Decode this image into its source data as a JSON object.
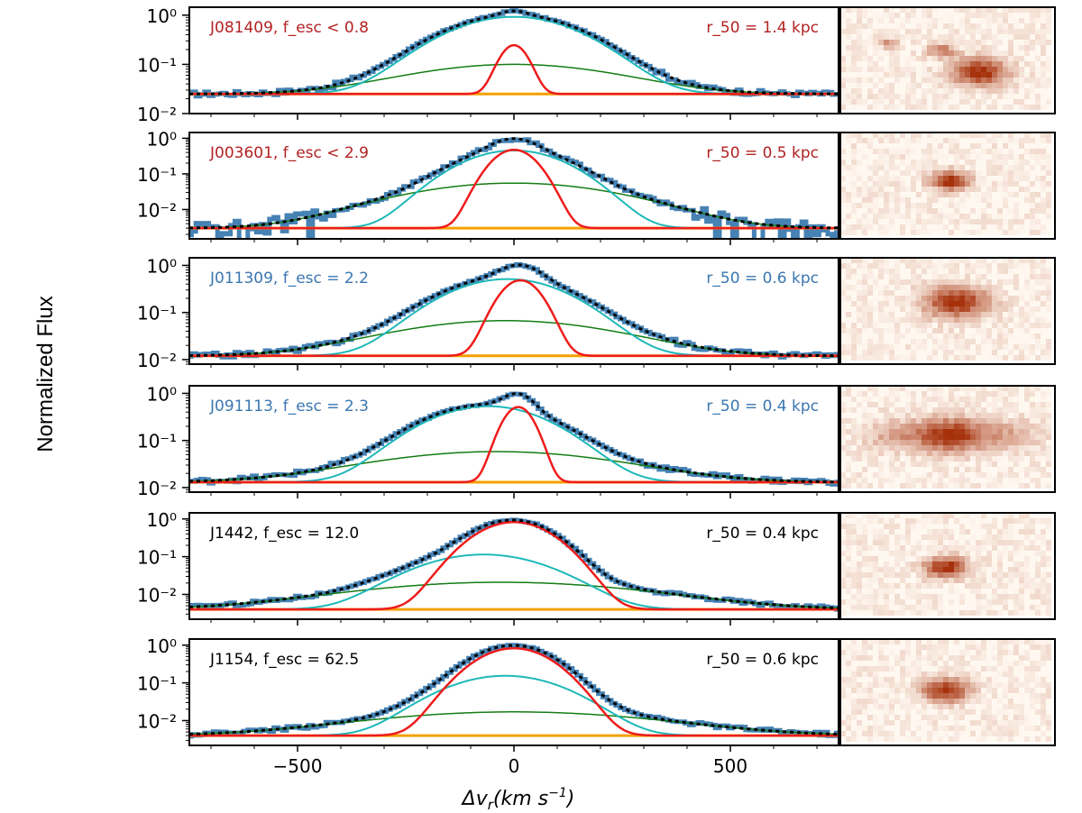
{
  "chart_data": {
    "type": "line",
    "ylabel": "Normalized Flux",
    "xlabel": "Δv_r(km s^-1)",
    "xlim": [
      -750,
      750
    ],
    "xticks": [
      -500,
      0,
      500
    ],
    "xtick_labels": [
      "−500",
      "0",
      "500"
    ],
    "ytick_labels": [
      "10⁰",
      "10⁻¹",
      "10⁻²"
    ],
    "yscale": "log",
    "legend_colors": {
      "observed": "#4682b4",
      "model": "#000000",
      "narrow": "#ee1c1c",
      "broad": "#1fb8b8",
      "very_broad": "#147d14",
      "continuum": "#f5a000"
    },
    "panels": [
      {
        "id": "J081409",
        "name_label": "J081409, f_esc < 0.8",
        "r50_label": "r_50 = 1.4 kpc",
        "label_color": "#b22222",
        "ylim": [
          0.01,
          1.45
        ],
        "continuum": 0.025,
        "narrow": {
          "amp": 0.22,
          "center": 0,
          "sigma": 28
        },
        "broad": {
          "amp": 0.9,
          "center": 0,
          "sigma": 125
        },
        "very_broad": {
          "amp": 0.075,
          "center": 0,
          "sigma": 205
        },
        "image_blobs": [
          {
            "cx": 0.66,
            "cy": 0.63,
            "r": 0.13,
            "i": 1.0
          },
          {
            "cx": 0.48,
            "cy": 0.42,
            "r": 0.07,
            "i": 0.55
          },
          {
            "cx": 0.22,
            "cy": 0.35,
            "r": 0.05,
            "i": 0.4
          }
        ]
      },
      {
        "id": "J003601",
        "name_label": "J003601, f_esc < 2.9",
        "r50_label": "r_50 = 0.5 kpc",
        "label_color": "#b22222",
        "ylim": [
          0.0015,
          1.45
        ],
        "continuum": 0.003,
        "narrow": {
          "amp": 0.47,
          "center": 0,
          "sigma": 42
        },
        "broad": {
          "amp": 0.45,
          "center": 0,
          "sigma": 95
        },
        "very_broad": {
          "amp": 0.052,
          "center": 0,
          "sigma": 200
        },
        "image_blobs": [
          {
            "cx": 0.52,
            "cy": 0.47,
            "r": 0.09,
            "i": 1.0
          }
        ]
      },
      {
        "id": "J011309",
        "name_label": "J011309, f_esc = 2.2",
        "r50_label": "r_50 = 0.6 kpc",
        "label_color": "#3a76b0",
        "ylim": [
          0.008,
          1.45
        ],
        "continuum": 0.012,
        "narrow": {
          "amp": 0.47,
          "center": 15,
          "sigma": 40
        },
        "broad": {
          "amp": 0.5,
          "center": -15,
          "sigma": 115
        },
        "very_broad": {
          "amp": 0.055,
          "center": -20,
          "sigma": 215
        },
        "image_blobs": [
          {
            "cx": 0.55,
            "cy": 0.43,
            "r": 0.15,
            "i": 1.0
          }
        ]
      },
      {
        "id": "J091113",
        "name_label": "J091113, f_esc = 2.3",
        "r50_label": "r_50 = 0.4 kpc",
        "label_color": "#3a76b0",
        "ylim": [
          0.008,
          1.45
        ],
        "continuum": 0.013,
        "narrow": {
          "amp": 0.5,
          "center": 10,
          "sigma": 30
        },
        "broad": {
          "amp": 0.52,
          "center": -60,
          "sigma": 115
        },
        "very_broad": {
          "amp": 0.045,
          "center": -40,
          "sigma": 240
        },
        "image_blobs": [
          {
            "cx": 0.52,
            "cy": 0.48,
            "r": 0.16,
            "i": 1.0
          },
          {
            "cx": 0.8,
            "cy": 0.48,
            "r": 0.14,
            "i": 0.35
          },
          {
            "cx": 0.25,
            "cy": 0.48,
            "r": 0.14,
            "i": 0.35
          }
        ]
      },
      {
        "id": "J1442",
        "name_label": "J1442, f_esc = 12.0",
        "r50_label": "r_50 = 0.4 kpc",
        "label_color": "#000000",
        "ylim": [
          0.0022,
          1.45
        ],
        "continuum": 0.004,
        "narrow": {
          "amp": 0.82,
          "center": 0,
          "sigma": 72
        },
        "broad": {
          "amp": 0.11,
          "center": -70,
          "sigma": 120
        },
        "very_broad": {
          "amp": 0.017,
          "center": -30,
          "sigma": 280
        },
        "image_blobs": [
          {
            "cx": 0.5,
            "cy": 0.53,
            "r": 0.1,
            "i": 1.0
          }
        ]
      },
      {
        "id": "J1154",
        "name_label": "J1154, f_esc = 62.5",
        "r50_label": "r_50 = 0.6 kpc",
        "label_color": "#000000",
        "ylim": [
          0.0022,
          1.45
        ],
        "continuum": 0.004,
        "narrow": {
          "amp": 0.82,
          "center": 0,
          "sigma": 72
        },
        "broad": {
          "amp": 0.15,
          "center": -20,
          "sigma": 110
        },
        "very_broad": {
          "amp": 0.013,
          "center": 0,
          "sigma": 280
        },
        "image_blobs": [
          {
            "cx": 0.5,
            "cy": 0.5,
            "r": 0.11,
            "i": 1.0
          }
        ]
      }
    ]
  }
}
